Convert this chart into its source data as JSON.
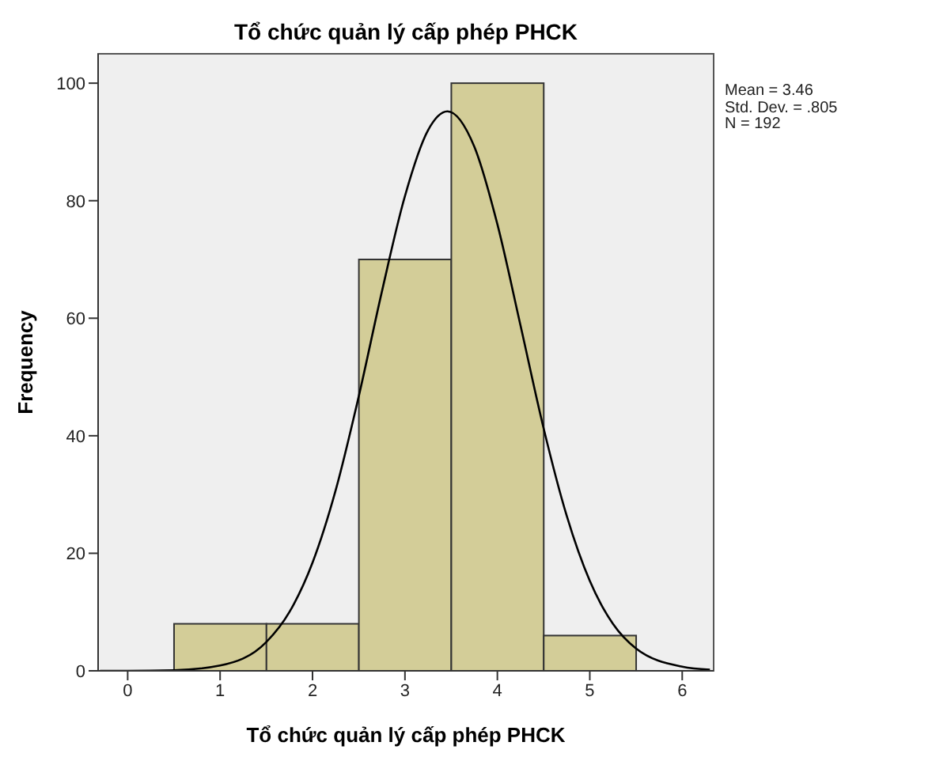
{
  "chart_data": {
    "type": "histogram",
    "title": "Tổ chức quản lý cấp phép PHCK",
    "xlabel": "Tổ chức quản lý cấp phép PHCK",
    "ylabel": "Frequency",
    "bins": [
      0.5,
      1.5,
      2.5,
      3.5,
      4.5,
      5.5
    ],
    "values": [
      8,
      8,
      70,
      100,
      6
    ],
    "color": "#d3cd98",
    "series": [
      {
        "type": "line",
        "color": "#000000",
        "x": [
          -0.3,
          0,
          0.5,
          1,
          1.5,
          1.75,
          2,
          2.25,
          2.5,
          2.75,
          3,
          3.25,
          3.46,
          3.75,
          4,
          4.25,
          4.5,
          4.75,
          5,
          5.25,
          5.5,
          6,
          6.3
        ],
        "values": [
          0,
          0,
          0.1,
          0.9,
          4.9,
          10,
          18.4,
          30.7,
          46.7,
          64.5,
          80.8,
          92,
          95.2,
          89.2,
          76,
          58.8,
          41.3,
          26.4,
          15.3,
          8,
          3.8,
          0.7,
          0.2
        ]
      }
    ],
    "xlim": [
      -0.32,
      6.34
    ],
    "xticks": [
      0,
      1,
      2,
      3,
      4,
      5,
      6
    ],
    "ylim": [
      0,
      105
    ],
    "yticks": [
      0,
      20,
      40,
      60,
      80,
      100
    ],
    "grid": false,
    "marker": "none",
    "line_style": "solid",
    "annotations": [
      "Mean = 3.46",
      "Std. Dev. = .805",
      "N = 192"
    ]
  }
}
